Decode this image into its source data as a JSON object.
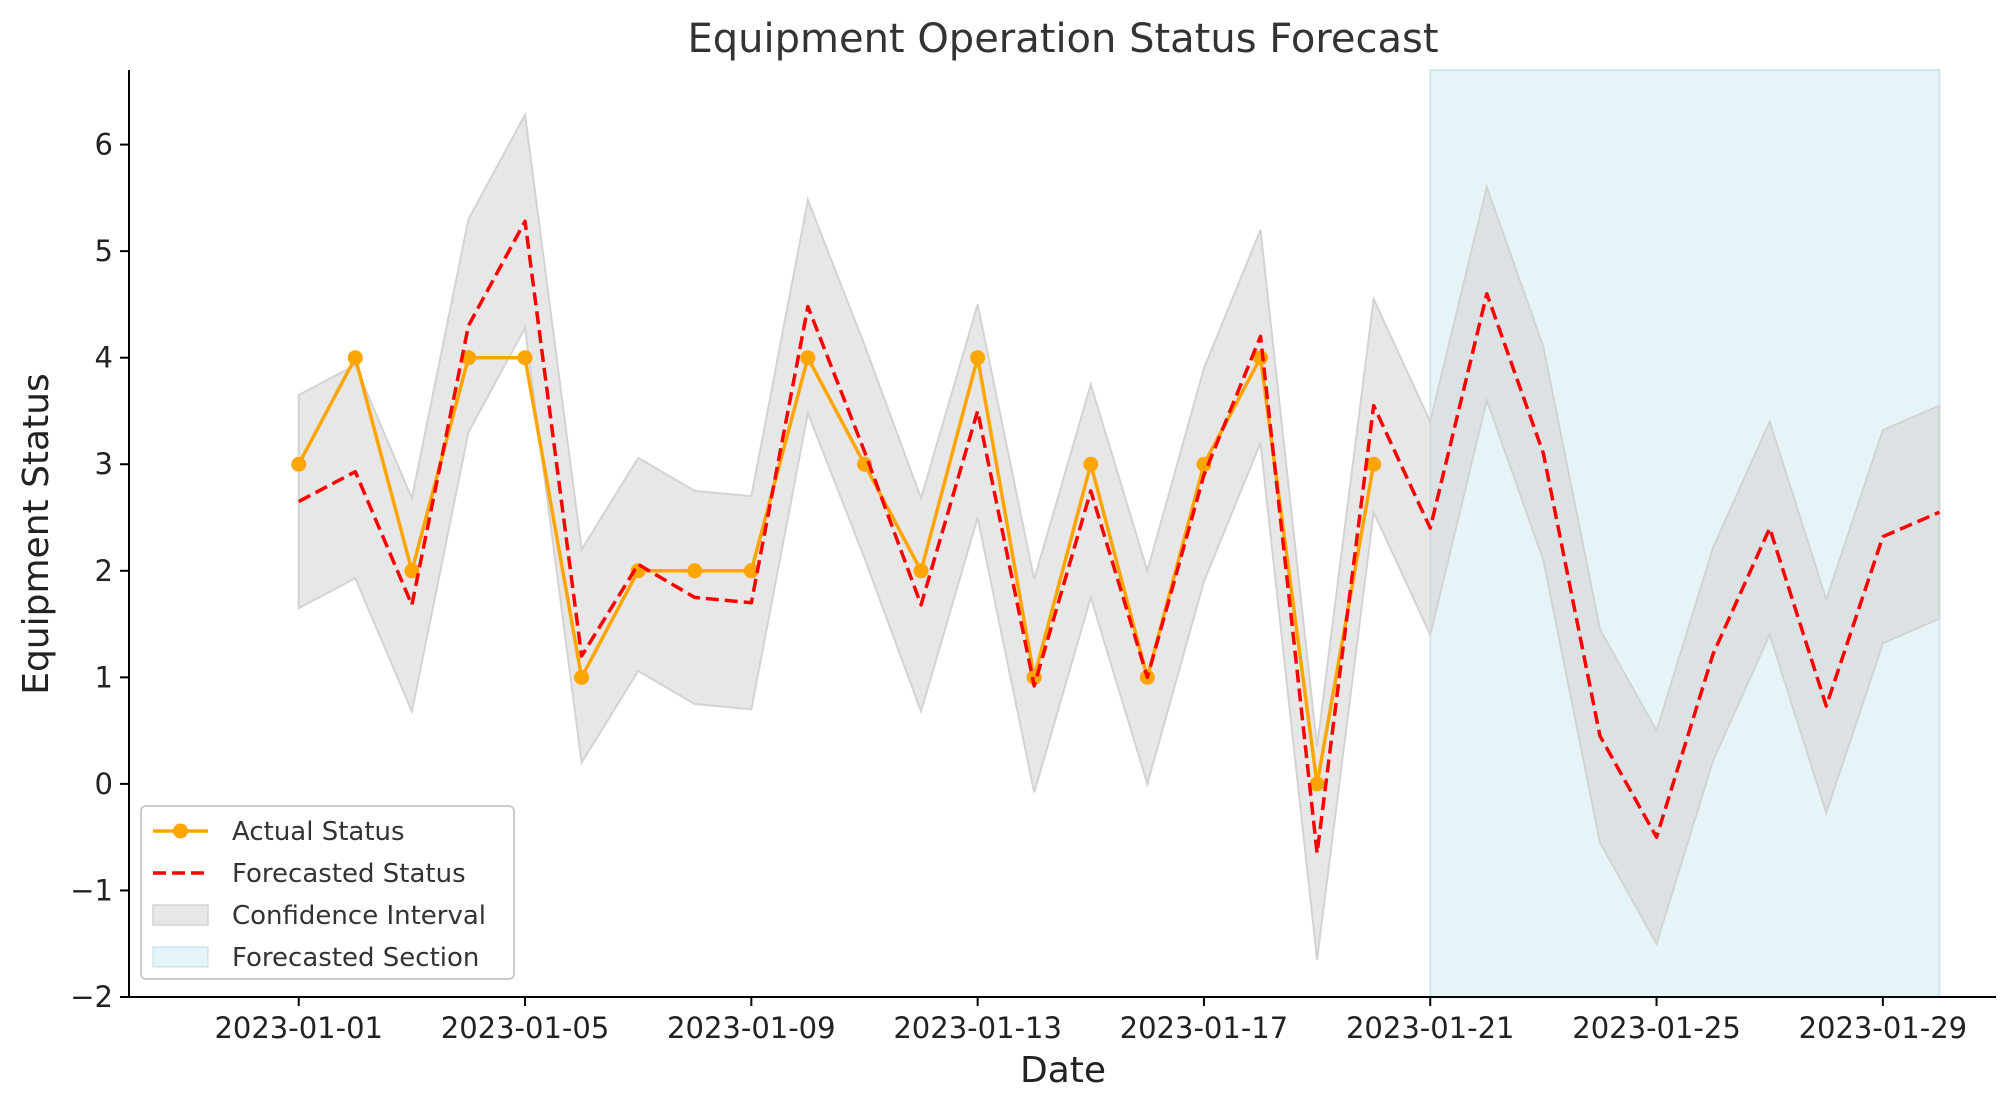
{
  "chart_data": {
    "type": "line",
    "title": "Equipment Operation Status Forecast",
    "xlabel": "Date",
    "ylabel": "Equipment Status",
    "xlim": [
      "2022-12-29",
      "2023-01-31"
    ],
    "ylim": [
      -2,
      6.7
    ],
    "xticks": [
      "2023-01-01",
      "2023-01-05",
      "2023-01-09",
      "2023-01-13",
      "2023-01-17",
      "2023-01-21",
      "2023-01-25",
      "2023-01-29"
    ],
    "yticks": [
      -2,
      -1,
      0,
      1,
      2,
      3,
      4,
      5,
      6
    ],
    "ytick_labels": [
      "−2",
      "−1",
      "0",
      "1",
      "2",
      "3",
      "4",
      "5",
      "6"
    ],
    "grid": false,
    "legend_position": "lower-left",
    "legend": [
      "Actual Status",
      "Forecasted Status",
      "Confidence Interval",
      "Forecasted Section"
    ],
    "colors": {
      "actual": "#FFA500",
      "forecast": "#FF0000",
      "confidence": "#D3D3D3",
      "forecast_section": "#ADD8E6"
    },
    "forecast_section": {
      "start": "2023-01-21",
      "end": "2023-01-30"
    },
    "series": [
      {
        "name": "Actual Status",
        "style": "solid-with-markers",
        "x": [
          "2023-01-01",
          "2023-01-02",
          "2023-01-03",
          "2023-01-04",
          "2023-01-05",
          "2023-01-06",
          "2023-01-07",
          "2023-01-08",
          "2023-01-09",
          "2023-01-10",
          "2023-01-11",
          "2023-01-12",
          "2023-01-13",
          "2023-01-14",
          "2023-01-15",
          "2023-01-16",
          "2023-01-17",
          "2023-01-18",
          "2023-01-19",
          "2023-01-20"
        ],
        "y": [
          3,
          4,
          2,
          4,
          4,
          1,
          2,
          2,
          2,
          4,
          3,
          2,
          4,
          1,
          3,
          1,
          3,
          4,
          0,
          3
        ]
      },
      {
        "name": "Forecasted Status",
        "style": "dashed",
        "x": [
          "2023-01-01",
          "2023-01-02",
          "2023-01-03",
          "2023-01-04",
          "2023-01-05",
          "2023-01-06",
          "2023-01-07",
          "2023-01-08",
          "2023-01-09",
          "2023-01-10",
          "2023-01-11",
          "2023-01-12",
          "2023-01-13",
          "2023-01-14",
          "2023-01-15",
          "2023-01-16",
          "2023-01-17",
          "2023-01-18",
          "2023-01-19",
          "2023-01-20",
          "2023-01-21",
          "2023-01-22",
          "2023-01-23",
          "2023-01-24",
          "2023-01-25",
          "2023-01-26",
          "2023-01-27",
          "2023-01-28",
          "2023-01-29",
          "2023-01-30"
        ],
        "y": [
          2.65,
          2.93,
          1.68,
          4.3,
          5.28,
          1.2,
          2.06,
          1.75,
          1.7,
          4.48,
          3.12,
          1.68,
          3.5,
          0.92,
          2.75,
          1.0,
          2.9,
          4.2,
          -0.65,
          3.55,
          2.4,
          4.6,
          3.1,
          0.45,
          -0.5,
          1.22,
          2.4,
          0.73,
          2.32,
          2.55
        ]
      },
      {
        "name": "Confidence Interval",
        "style": "band",
        "x": [
          "2023-01-01",
          "2023-01-02",
          "2023-01-03",
          "2023-01-04",
          "2023-01-05",
          "2023-01-06",
          "2023-01-07",
          "2023-01-08",
          "2023-01-09",
          "2023-01-10",
          "2023-01-11",
          "2023-01-12",
          "2023-01-13",
          "2023-01-14",
          "2023-01-15",
          "2023-01-16",
          "2023-01-17",
          "2023-01-18",
          "2023-01-19",
          "2023-01-20",
          "2023-01-21",
          "2023-01-22",
          "2023-01-23",
          "2023-01-24",
          "2023-01-25",
          "2023-01-26",
          "2023-01-27",
          "2023-01-28",
          "2023-01-29",
          "2023-01-30"
        ],
        "lower": [
          1.65,
          1.93,
          0.68,
          3.3,
          4.28,
          0.2,
          1.06,
          0.75,
          0.7,
          3.48,
          2.12,
          0.68,
          2.5,
          -0.08,
          1.75,
          0.0,
          1.9,
          3.2,
          -1.65,
          2.55,
          1.4,
          3.6,
          2.1,
          -0.55,
          -1.5,
          0.22,
          1.4,
          -0.27,
          1.32,
          1.55
        ],
        "upper": [
          3.65,
          3.93,
          2.68,
          5.3,
          6.28,
          2.2,
          3.06,
          2.75,
          2.7,
          5.48,
          4.12,
          2.68,
          4.5,
          1.92,
          3.75,
          2.0,
          3.9,
          5.2,
          0.35,
          4.55,
          3.4,
          5.6,
          4.1,
          1.45,
          0.5,
          2.22,
          3.4,
          1.73,
          3.32,
          3.55
        ]
      }
    ]
  }
}
